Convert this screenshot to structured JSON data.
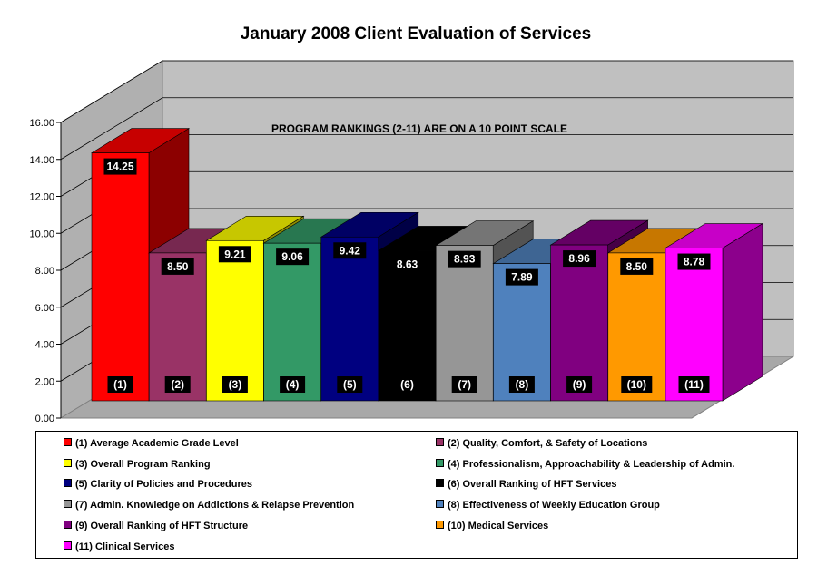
{
  "chart_data": {
    "type": "bar",
    "title": "January 2008 Client Evaluation of Services",
    "annotation": "PROGRAM RANKINGS (2-11) ARE ON A 10 POINT SCALE",
    "ylim": [
      0,
      16
    ],
    "yticks": [
      "0.00",
      "2.00",
      "4.00",
      "6.00",
      "8.00",
      "10.00",
      "12.00",
      "14.00",
      "16.00"
    ],
    "xlabel": "",
    "ylabel": "",
    "grid": true,
    "bars": [
      {
        "tag": "(1)",
        "label": "(1) Average Academic Grade Level",
        "value": 14.25,
        "value_label": "14.25",
        "color": "#FF0000"
      },
      {
        "tag": "(2)",
        "label": "(2) Quality, Comfort, & Safety of Locations",
        "value": 8.5,
        "value_label": "8.50",
        "color": "#993366"
      },
      {
        "tag": "(3)",
        "label": "(3) Overall Program Ranking",
        "value": 9.21,
        "value_label": "9.21",
        "color": "#FFFF00"
      },
      {
        "tag": "(4)",
        "label": "(4) Professionalism, Approachability  & Leadership of Admin.",
        "value": 9.06,
        "value_label": "9.06",
        "color": "#339966"
      },
      {
        "tag": "(5)",
        "label": "(5) Clarity of Policies and Procedures",
        "value": 9.42,
        "value_label": "9.42",
        "color": "#000080"
      },
      {
        "tag": "(6)",
        "label": "(6) Overall Ranking of HFT Services",
        "value": 8.63,
        "value_label": "8.63",
        "color": "#000000"
      },
      {
        "tag": "(7)",
        "label": "(7) Admin. Knowledge on Addictions & Relapse Prevention",
        "value": 8.93,
        "value_label": "8.93",
        "color": "#969696"
      },
      {
        "tag": "(8)",
        "label": "(8) Effectiveness of Weekly Education Group",
        "value": 7.89,
        "value_label": "7.89",
        "color": "#4F81BD"
      },
      {
        "tag": "(9)",
        "label": "(9) Overall Ranking of HFT Structure",
        "value": 8.96,
        "value_label": "8.96",
        "color": "#800080"
      },
      {
        "tag": "(10)",
        "label": "(10) Medical Services",
        "value": 8.5,
        "value_label": "8.50",
        "color": "#FF9900"
      },
      {
        "tag": "(11)",
        "label": "(11) Clinical Services",
        "value": 8.78,
        "value_label": "8.78",
        "color": "#FF00FF"
      }
    ],
    "legend_position": "bottom"
  }
}
